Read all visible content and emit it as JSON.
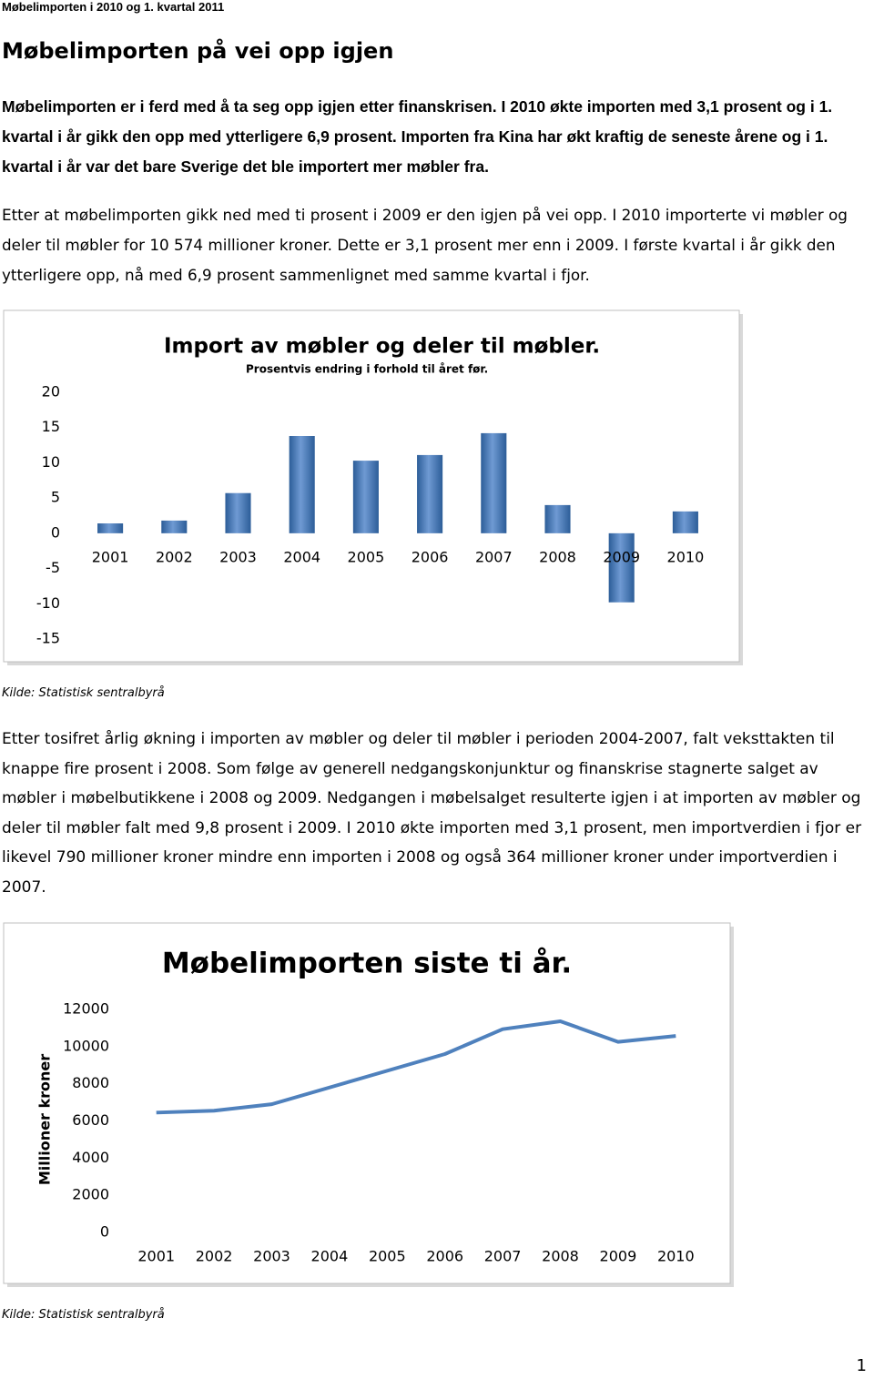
{
  "header": "Møbelimporten i 2010 og 1. kvartal 2011",
  "title": "Møbelimporten på vei opp igjen",
  "paragraphs": [
    "Møbelimporten er i ferd med å ta seg opp igjen etter finanskrisen. I 2010 økte importen med 3,1 prosent og i 1. kvartal i år gikk den opp med ytterligere 6,9 prosent. Importen fra Kina har økt kraftig de seneste årene og i 1. kvartal i år var det bare Sverige det ble importert mer møbler fra.",
    "Etter at møbelimporten gikk ned med ti prosent i 2009 er den igjen på vei opp. I 2010 importerte vi møbler og deler til møbler for 10 574 millioner kroner. Dette er 3,1 prosent mer enn i 2009. I første kvartal i år gikk den ytterligere opp, nå med 6,9 prosent sammenlignet med samme kvartal i fjor.",
    "Etter tosifret årlig økning i importen av møbler og deler til møbler i perioden 2004-2007, falt veksttakten til knappe fire prosent i 2008. Som følge av generell nedgangskonjunktur og finanskrise stagnerte salget av møbler i møbelbutikkene i 2008 og 2009. Nedgangen i møbelsalget resulterte igjen i at importen av møbler og deler til møbler falt med 9,8 prosent i 2009. I 2010 økte importen med 3,1 prosent, men importverdien i fjor er likevel 790 millioner kroner mindre enn importen i 2008 og også 364 millioner kroner under importverdien i 2007."
  ],
  "sources": [
    "Kilde: Statistisk sentralbyrå",
    "Kilde: Statistisk sentralbyrå"
  ],
  "page_number": "1",
  "chart_data": [
    {
      "type": "bar",
      "title": "Import av møbler og deler til møbler.",
      "subtitle": "Prosentvis endring i forhold til året før.",
      "categories": [
        "2001",
        "2002",
        "2003",
        "2004",
        "2005",
        "2006",
        "2007",
        "2008",
        "2009",
        "2010"
      ],
      "values": [
        1.4,
        1.8,
        5.7,
        13.8,
        10.3,
        11.1,
        14.2,
        4.0,
        -9.8,
        3.1
      ],
      "color": "#4f81bd",
      "ylim": [
        -15,
        20
      ],
      "yticks": [
        -15,
        -10,
        -5,
        0,
        5,
        10,
        15,
        20
      ],
      "grid": false
    },
    {
      "type": "line",
      "title": "Møbelimporten siste ti år.",
      "y_label": "Millioner kroner",
      "categories": [
        "2001",
        "2002",
        "2003",
        "2004",
        "2005",
        "2006",
        "2007",
        "2008",
        "2009",
        "2010"
      ],
      "values": [
        6450,
        6550,
        6900,
        7800,
        8700,
        9600,
        10938,
        11364,
        10256,
        10574
      ],
      "color": "#4f81bd",
      "ylim": [
        0,
        12000
      ],
      "yticks": [
        0,
        2000,
        4000,
        6000,
        8000,
        10000,
        12000
      ],
      "grid": false
    }
  ]
}
